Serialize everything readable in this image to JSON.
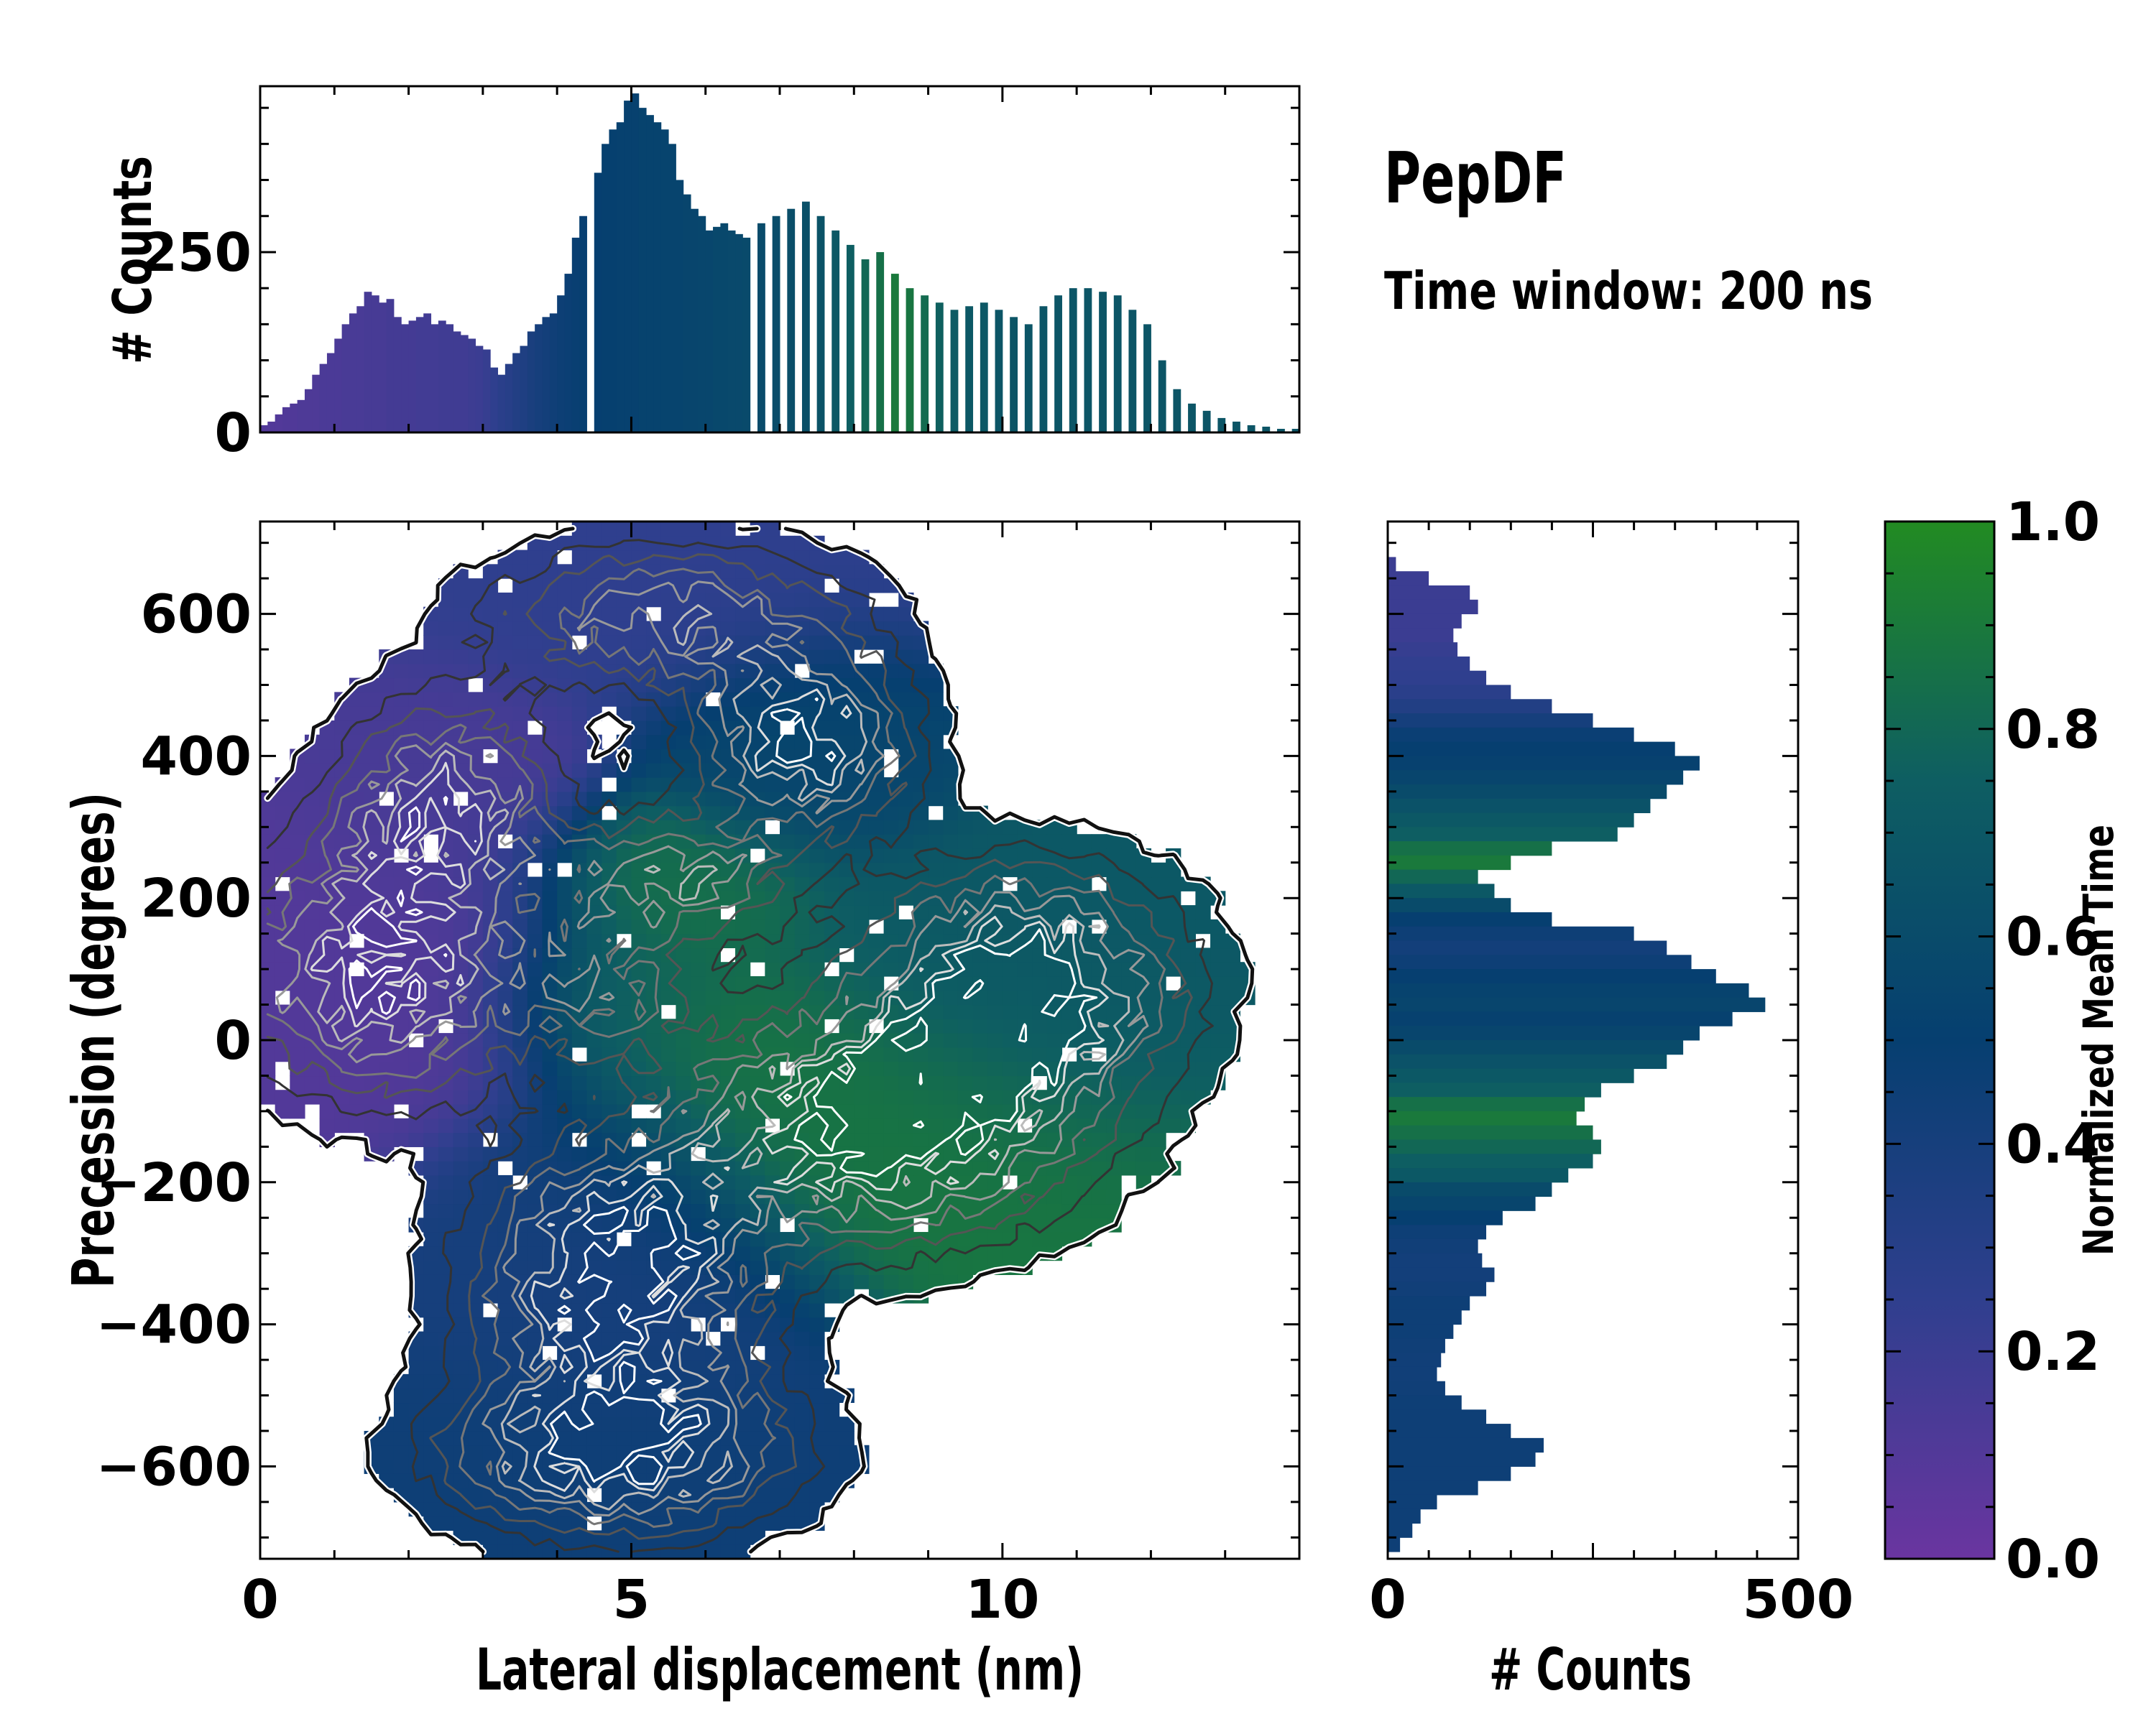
{
  "title": "PepDF",
  "subtitle": "Time window: 200 ns",
  "colors": {
    "colormap_stops": [
      "#6a35a0",
      "#2f3f8e",
      "#063f70",
      "#0e5e62",
      "#228b22"
    ],
    "contour_dark": "#111111",
    "contour_light": "#ffffff"
  },
  "chart_data": [
    {
      "id": "top-histogram",
      "type": "bar",
      "xlabel": "",
      "ylabel": "# Counts",
      "xlim": [
        0,
        14
      ],
      "ylim": [
        0,
        480
      ],
      "yticks": [
        0,
        250
      ],
      "ytick_labels": [
        "0",
        "250"
      ],
      "bin_width": 0.1,
      "x_bin_centers": [
        0.05,
        0.15,
        0.25,
        0.35,
        0.45,
        0.55,
        0.65,
        0.75,
        0.85,
        0.95,
        1.05,
        1.15,
        1.25,
        1.35,
        1.45,
        1.55,
        1.65,
        1.75,
        1.85,
        1.95,
        2.05,
        2.15,
        2.25,
        2.35,
        2.45,
        2.55,
        2.65,
        2.75,
        2.85,
        2.95,
        3.05,
        3.15,
        3.25,
        3.35,
        3.45,
        3.55,
        3.65,
        3.75,
        3.85,
        3.95,
        4.05,
        4.15,
        4.25,
        4.35,
        4.55,
        4.65,
        4.75,
        4.85,
        4.95,
        5.05,
        5.15,
        5.25,
        5.35,
        5.45,
        5.55,
        5.65,
        5.75,
        5.85,
        5.95,
        6.05,
        6.15,
        6.25,
        6.35,
        6.45,
        6.55,
        6.75,
        6.95,
        7.15,
        7.35,
        7.55,
        7.75,
        7.95,
        8.15,
        8.35,
        8.55,
        8.75,
        8.95,
        9.15,
        9.35,
        9.55,
        9.75,
        9.95,
        10.15,
        10.35,
        10.55,
        10.75,
        10.95,
        11.15,
        11.35,
        11.55,
        11.75,
        11.95,
        12.15,
        12.35,
        12.55,
        12.75,
        12.95,
        13.15,
        13.35,
        13.55,
        13.75,
        13.95
      ],
      "values": [
        10,
        15,
        25,
        35,
        40,
        45,
        60,
        80,
        95,
        110,
        130,
        150,
        165,
        175,
        195,
        190,
        180,
        185,
        160,
        150,
        155,
        160,
        165,
        150,
        155,
        150,
        140,
        135,
        130,
        120,
        115,
        90,
        80,
        95,
        110,
        120,
        140,
        150,
        160,
        165,
        190,
        220,
        270,
        300,
        360,
        400,
        420,
        430,
        460,
        470,
        450,
        440,
        430,
        420,
        400,
        350,
        330,
        310,
        300,
        280,
        285,
        290,
        280,
        275,
        270,
        290,
        300,
        310,
        320,
        300,
        280,
        260,
        240,
        250,
        220,
        200,
        190,
        180,
        170,
        175,
        180,
        170,
        160,
        150,
        175,
        190,
        200,
        200,
        195,
        190,
        170,
        150,
        100,
        60,
        40,
        30,
        20,
        15,
        10,
        8,
        5,
        5
      ],
      "bar_norm_time": [
        0.1,
        0.1,
        0.1,
        0.11,
        0.11,
        0.12,
        0.12,
        0.12,
        0.13,
        0.13,
        0.13,
        0.14,
        0.14,
        0.14,
        0.15,
        0.15,
        0.15,
        0.16,
        0.16,
        0.16,
        0.16,
        0.17,
        0.17,
        0.17,
        0.18,
        0.18,
        0.18,
        0.18,
        0.19,
        0.2,
        0.22,
        0.25,
        0.28,
        0.3,
        0.33,
        0.35,
        0.38,
        0.4,
        0.42,
        0.44,
        0.46,
        0.47,
        0.48,
        0.49,
        0.5,
        0.51,
        0.51,
        0.52,
        0.52,
        0.52,
        0.53,
        0.53,
        0.53,
        0.54,
        0.54,
        0.54,
        0.55,
        0.55,
        0.56,
        0.56,
        0.57,
        0.57,
        0.58,
        0.58,
        0.59,
        0.6,
        0.61,
        0.62,
        0.64,
        0.66,
        0.7,
        0.75,
        0.8,
        0.85,
        0.9,
        0.88,
        0.82,
        0.76,
        0.72,
        0.7,
        0.69,
        0.68,
        0.68,
        0.68,
        0.68,
        0.68,
        0.68,
        0.68,
        0.68,
        0.68,
        0.68,
        0.68,
        0.68,
        0.68,
        0.68,
        0.68,
        0.68,
        0.68,
        0.68,
        0.68,
        0.68,
        0.68
      ]
    },
    {
      "id": "main-density",
      "type": "heatmap",
      "xlabel": "Lateral displacement (nm)",
      "ylabel": "Precession (degrees)",
      "xlim": [
        0,
        14
      ],
      "ylim": [
        -730,
        730
      ],
      "xticks": [
        0,
        5,
        10
      ],
      "xtick_labels": [
        "0",
        "5",
        "10"
      ],
      "yticks": [
        -600,
        -400,
        -200,
        0,
        200,
        400,
        600
      ],
      "ytick_labels": [
        "−600",
        "−400",
        "−200",
        "0",
        "200",
        "400",
        "600"
      ],
      "clusters": [
        {
          "x": 2.5,
          "y": 340,
          "sx": 1.0,
          "sy": 95,
          "w": 0.8,
          "t": 0.15
        },
        {
          "x": 1.6,
          "y": 100,
          "sx": 1.3,
          "sy": 120,
          "w": 1.0,
          "t": 0.1
        },
        {
          "x": 5.5,
          "y": 600,
          "sx": 1.7,
          "sy": 70,
          "w": 0.7,
          "t": 0.25
        },
        {
          "x": 7.3,
          "y": 420,
          "sx": 1.0,
          "sy": 85,
          "w": 1.0,
          "t": 0.55
        },
        {
          "x": 5.5,
          "y": 230,
          "sx": 1.1,
          "sy": 60,
          "w": 0.7,
          "t": 0.85
        },
        {
          "x": 4.6,
          "y": 70,
          "sx": 0.9,
          "sy": 70,
          "w": 0.5,
          "t": 0.8
        },
        {
          "x": 10.3,
          "y": 80,
          "sx": 1.4,
          "sy": 110,
          "w": 1.1,
          "t": 0.7
        },
        {
          "x": 8.3,
          "y": -120,
          "sx": 1.8,
          "sy": 110,
          "w": 1.1,
          "t": 0.88
        },
        {
          "x": 4.8,
          "y": -330,
          "sx": 1.3,
          "sy": 120,
          "w": 1.1,
          "t": 0.4
        },
        {
          "x": 4.8,
          "y": -580,
          "sx": 1.6,
          "sy": 80,
          "w": 1.0,
          "t": 0.45
        }
      ],
      "contour_levels": 8
    },
    {
      "id": "right-histogram",
      "type": "bar",
      "orientation": "horizontal",
      "xlabel": "# Counts",
      "ylabel": "",
      "xlim": [
        0,
        500
      ],
      "ylim": [
        -730,
        730
      ],
      "xticks": [
        0,
        500
      ],
      "xtick_labels": [
        "0",
        "500"
      ],
      "bin_width_deg": 20,
      "y_bin_centers": [
        670,
        650,
        630,
        610,
        590,
        570,
        550,
        530,
        510,
        490,
        470,
        450,
        430,
        410,
        390,
        370,
        350,
        330,
        310,
        290,
        270,
        250,
        230,
        210,
        190,
        170,
        150,
        130,
        110,
        90,
        70,
        50,
        30,
        10,
        -10,
        -30,
        -50,
        -70,
        -90,
        -110,
        -130,
        -150,
        -170,
        -190,
        -210,
        -230,
        -250,
        -270,
        -290,
        -310,
        -330,
        -350,
        -370,
        -390,
        -410,
        -430,
        -450,
        -470,
        -490,
        -510,
        -530,
        -550,
        -570,
        -590,
        -610,
        -630,
        -650,
        -670,
        -690,
        -710
      ],
      "values": [
        10,
        50,
        100,
        110,
        90,
        80,
        85,
        100,
        120,
        150,
        200,
        250,
        300,
        350,
        380,
        360,
        340,
        320,
        300,
        280,
        200,
        150,
        110,
        130,
        150,
        200,
        300,
        340,
        370,
        400,
        440,
        460,
        420,
        380,
        360,
        340,
        300,
        260,
        240,
        230,
        250,
        260,
        250,
        220,
        200,
        180,
        140,
        120,
        110,
        115,
        130,
        120,
        100,
        90,
        80,
        70,
        65,
        60,
        70,
        90,
        120,
        150,
        190,
        180,
        150,
        110,
        60,
        40,
        30,
        15
      ],
      "bar_norm_time": [
        0.2,
        0.2,
        0.2,
        0.2,
        0.2,
        0.2,
        0.22,
        0.24,
        0.25,
        0.28,
        0.33,
        0.4,
        0.47,
        0.5,
        0.52,
        0.55,
        0.6,
        0.65,
        0.7,
        0.75,
        0.85,
        0.9,
        0.8,
        0.7,
        0.6,
        0.5,
        0.45,
        0.42,
        0.45,
        0.5,
        0.53,
        0.55,
        0.52,
        0.55,
        0.6,
        0.65,
        0.7,
        0.75,
        0.85,
        0.9,
        0.85,
        0.8,
        0.75,
        0.7,
        0.6,
        0.55,
        0.5,
        0.45,
        0.43,
        0.42,
        0.42,
        0.43,
        0.45,
        0.45,
        0.45,
        0.44,
        0.43,
        0.43,
        0.44,
        0.45,
        0.45,
        0.45,
        0.45,
        0.45,
        0.45,
        0.45,
        0.45,
        0.45,
        0.45,
        0.45
      ]
    },
    {
      "id": "colorbar",
      "type": "colorbar",
      "label": "Normalized Mean Time",
      "range": [
        0,
        1
      ],
      "ticks": [
        0,
        0.2,
        0.4,
        0.6,
        0.8,
        1.0
      ],
      "tick_labels": [
        "0.0",
        "0.2",
        "0.4",
        "0.6",
        "0.8",
        "1.0"
      ]
    }
  ]
}
